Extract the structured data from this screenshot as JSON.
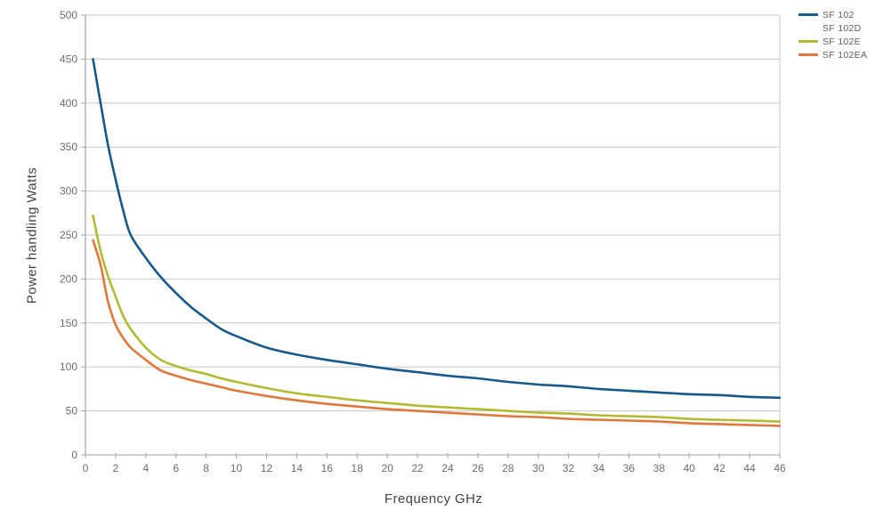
{
  "page": {
    "background": "#ffffff"
  },
  "axes": {
    "xlabel": "Frequency GHz",
    "ylabel": "Power handling Watts"
  },
  "chart_data": {
    "type": "line",
    "title": "",
    "xlabel": "Frequency GHz",
    "ylabel": "Power handling Watts",
    "xlim": [
      0,
      46
    ],
    "ylim": [
      0,
      500
    ],
    "x_ticks": [
      0,
      2,
      4,
      6,
      8,
      10,
      12,
      14,
      16,
      18,
      20,
      22,
      24,
      26,
      28,
      30,
      32,
      34,
      36,
      38,
      40,
      42,
      44,
      46
    ],
    "y_ticks": [
      0,
      50,
      100,
      150,
      200,
      250,
      300,
      350,
      400,
      450,
      500
    ],
    "grid": "horizontal",
    "legend_position": "top-right-outside",
    "x": [
      0.5,
      1,
      1.5,
      2,
      2.5,
      3,
      4,
      5,
      6,
      7,
      8,
      9,
      10,
      12,
      14,
      16,
      18,
      20,
      22,
      24,
      26,
      28,
      30,
      32,
      34,
      36,
      38,
      40,
      42,
      44,
      46
    ],
    "series": [
      {
        "name": "SF 102",
        "color": "#16598f",
        "visible": true,
        "values": [
          450,
          400,
          352,
          313,
          278,
          250,
          224,
          202,
          184,
          168,
          155,
          143,
          135,
          122,
          114,
          108,
          103,
          98,
          94,
          90,
          87,
          83,
          80,
          78,
          75,
          73,
          71,
          69,
          68,
          66,
          65
        ]
      },
      {
        "name": "SF 102D",
        "color": "",
        "visible": false,
        "values": []
      },
      {
        "name": "SF 102E",
        "color": "#b4ba30",
        "visible": true,
        "values": [
          272,
          232,
          203,
          180,
          158,
          143,
          122,
          108,
          101,
          96,
          92,
          87,
          83,
          76,
          70,
          66,
          62,
          59,
          56,
          54,
          52,
          50,
          48,
          47,
          45,
          44,
          43,
          41,
          40,
          39,
          38
        ]
      },
      {
        "name": "SF 102EA",
        "color": "#e1783a",
        "visible": true,
        "values": [
          244,
          216,
          174,
          148,
          133,
          122,
          108,
          96,
          90,
          85,
          81,
          77,
          73,
          67,
          62,
          58,
          55,
          52,
          50,
          48,
          46,
          44,
          43,
          41,
          40,
          39,
          38,
          36,
          35,
          34,
          33
        ]
      }
    ],
    "style": {
      "grid_color": "#c7c7c7",
      "axis_color": "#a3a3a3",
      "tick_color": "#a3a3a3",
      "tick_label_color": "#6e6d68",
      "axis_title_color": "#3f444d",
      "line_width": 2.6
    }
  }
}
